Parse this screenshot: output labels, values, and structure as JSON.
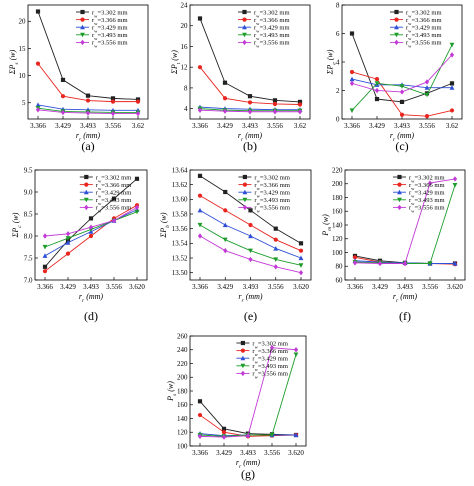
{
  "colors": [
    "#222222",
    "#e8251f",
    "#2e4fd6",
    "#1f9d2c",
    "#c23ad6"
  ],
  "legend_labels": [
    "r_w=3.302 mm",
    "r_w=3.366 mm",
    "r_w=3.429 mm",
    "r_w=3.493 mm",
    "r_w=3.556 mm"
  ],
  "chart_data": [
    {
      "type": "line",
      "panel_label": "(a)",
      "xlabel": "r_r (mm)",
      "ylabel": "ΣP_s (w)",
      "x": [
        "3.366",
        "3.429",
        "3.493",
        "3.556",
        "3.62"
      ],
      "y_ticks": [
        "5",
        "10",
        "15",
        "20"
      ],
      "ylim": [
        2,
        23
      ],
      "series": [
        {
          "values": [
            21.8,
            9.2,
            6.3,
            5.8,
            5.6
          ]
        },
        {
          "values": [
            12.2,
            6.2,
            5.4,
            5.2,
            5.2
          ]
        },
        {
          "values": [
            4.6,
            3.8,
            3.7,
            3.6,
            3.6
          ]
        },
        {
          "values": [
            4.0,
            3.4,
            3.3,
            3.2,
            3.2
          ]
        },
        {
          "values": [
            3.7,
            3.2,
            3.1,
            3.0,
            3.0
          ]
        }
      ]
    },
    {
      "type": "line",
      "panel_label": "(b)",
      "xlabel": "r_r (mm)",
      "ylabel": "ΣP_t (w)",
      "x": [
        "3.366",
        "3.429",
        "3.493",
        "3.556",
        "3.62"
      ],
      "y_ticks": [
        "4",
        "8",
        "12",
        "16",
        "20",
        "24"
      ],
      "ylim": [
        2,
        24
      ],
      "series": [
        {
          "values": [
            21.4,
            9.0,
            6.4,
            5.6,
            5.3
          ]
        },
        {
          "values": [
            12.0,
            6.0,
            5.2,
            4.9,
            4.8
          ]
        },
        {
          "values": [
            4.3,
            4.0,
            3.9,
            3.8,
            3.8
          ]
        },
        {
          "values": [
            4.0,
            3.7,
            3.6,
            3.6,
            3.6
          ]
        },
        {
          "values": [
            3.7,
            3.5,
            3.4,
            3.4,
            3.4
          ]
        }
      ]
    },
    {
      "type": "line",
      "panel_label": "(c)",
      "xlabel": "r_r (mm)",
      "ylabel": "ΣP_e (w)",
      "x": [
        "3.366",
        "3.429",
        "3.493",
        "3.556",
        "3.62"
      ],
      "y_ticks": [
        "0",
        "2",
        "4",
        "6",
        "8"
      ],
      "ylim": [
        0,
        8
      ],
      "series": [
        {
          "values": [
            6.0,
            1.4,
            1.2,
            1.8,
            2.5
          ]
        },
        {
          "values": [
            3.3,
            2.8,
            0.3,
            0.2,
            0.6
          ]
        },
        {
          "values": [
            2.8,
            2.4,
            2.4,
            2.2,
            2.2
          ]
        },
        {
          "values": [
            0.6,
            2.5,
            2.3,
            1.7,
            5.2
          ]
        },
        {
          "values": [
            2.5,
            2.0,
            1.9,
            2.6,
            4.5
          ]
        }
      ]
    },
    {
      "type": "line",
      "panel_label": "(d)",
      "xlabel": "r_r (mm)",
      "ylabel": "ΣP_c (w)",
      "x": [
        "3.366",
        "3.429",
        "3.493",
        "3.556",
        "3.620"
      ],
      "y_ticks": [
        "7.0",
        "7.5",
        "8.0",
        "8.5",
        "9.0",
        "9.5"
      ],
      "ylim": [
        7.0,
        9.5
      ],
      "series": [
        {
          "values": [
            7.3,
            7.9,
            8.4,
            8.85,
            9.3
          ]
        },
        {
          "values": [
            7.2,
            7.6,
            8.0,
            8.4,
            8.7
          ]
        },
        {
          "values": [
            7.55,
            7.85,
            8.1,
            8.35,
            8.6
          ]
        },
        {
          "values": [
            7.75,
            7.95,
            8.15,
            8.35,
            8.55
          ]
        },
        {
          "values": [
            8.0,
            8.05,
            8.2,
            8.35,
            8.65
          ]
        }
      ]
    },
    {
      "type": "line",
      "panel_label": "(e)",
      "xlabel": "r_r (mm)",
      "ylabel": "ΣP_b (w)",
      "x": [
        "3.366",
        "3.429",
        "3.493",
        "3.556",
        "3.620"
      ],
      "y_ticks": [
        "13.50",
        "13.52",
        "13.54",
        "13.56",
        "13.58",
        "13.60",
        "13.62",
        "13.64"
      ],
      "ylim": [
        13.49,
        13.64
      ],
      "series": [
        {
          "values": [
            13.632,
            13.61,
            13.585,
            13.56,
            13.54
          ]
        },
        {
          "values": [
            13.605,
            13.585,
            13.565,
            13.545,
            13.53
          ]
        },
        {
          "values": [
            13.585,
            13.565,
            13.55,
            13.533,
            13.52
          ]
        },
        {
          "values": [
            13.565,
            13.545,
            13.53,
            13.518,
            13.51
          ]
        },
        {
          "values": [
            13.55,
            13.53,
            13.518,
            13.508,
            13.5
          ]
        }
      ]
    },
    {
      "type": "line",
      "panel_label": "(f)",
      "xlabel": "r_r (mm)",
      "ylabel": "P_m (w)",
      "x": [
        "3.366",
        "3.429",
        "3.493",
        "3.556",
        "3.620"
      ],
      "y_ticks": [
        "60",
        "80",
        "100",
        "120",
        "140",
        "160",
        "180",
        "200",
        "220"
      ],
      "ylim": [
        60,
        220
      ],
      "series": [
        {
          "values": [
            95,
            88,
            85,
            84,
            84
          ]
        },
        {
          "values": [
            93,
            86,
            84,
            84,
            83
          ]
        },
        {
          "values": [
            88,
            86,
            85,
            84,
            84
          ]
        },
        {
          "values": [
            86,
            85,
            84,
            84,
            198
          ]
        },
        {
          "values": [
            85,
            84,
            84,
            201,
            207
          ]
        }
      ]
    },
    {
      "type": "line",
      "panel_label": "(g)",
      "xlabel": "r_r (mm)",
      "ylabel": "P_s (w)",
      "x": [
        "3.366",
        "3.429",
        "3.493",
        "3.556",
        "3.620"
      ],
      "y_ticks": [
        "100",
        "120",
        "140",
        "160",
        "180",
        "200",
        "220",
        "240",
        "260"
      ],
      "ylim": [
        100,
        260
      ],
      "series": [
        {
          "values": [
            165,
            125,
            118,
            117,
            116
          ]
        },
        {
          "values": [
            145,
            120,
            114,
            115,
            116
          ]
        },
        {
          "values": [
            118,
            115,
            116,
            116,
            116
          ]
        },
        {
          "values": [
            116,
            114,
            116,
            116,
            233
          ]
        },
        {
          "values": [
            114,
            113,
            115,
            243,
            240
          ]
        }
      ]
    }
  ]
}
